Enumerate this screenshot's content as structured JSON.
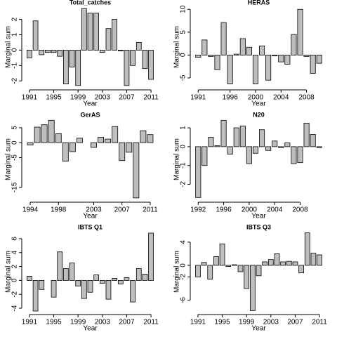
{
  "chart_data": [
    {
      "type": "bar",
      "title": "Total_catches",
      "xlabel": "Year",
      "ylabel": "Marginal sum",
      "color": "#bebebe",
      "x": [
        1991,
        1992,
        1993,
        1994,
        1995,
        1996,
        1997,
        1998,
        1999,
        2000,
        2001,
        2002,
        2003,
        2004,
        2005,
        2006,
        2007,
        2008,
        2009,
        2010,
        2011
      ],
      "values": [
        -0.5,
        1.9,
        -0.3,
        -0.15,
        -0.15,
        -0.4,
        -2.2,
        -1.1,
        -2.3,
        2.7,
        2.4,
        2.4,
        -0.15,
        1.4,
        2.0,
        -0.05,
        -2.3,
        -1.0,
        0.5,
        -1.2,
        -1.9
      ],
      "xlim": [
        1990.2,
        2011.8
      ],
      "xticks": [
        1991,
        1995,
        1999,
        2003,
        2007,
        2011
      ],
      "ylim": [
        -2.4,
        2.8
      ],
      "yticks": [
        -2,
        -1,
        0,
        1,
        2
      ]
    },
    {
      "type": "bar",
      "title": "HERAS",
      "xlabel": "Year",
      "ylabel": "Marginal sum",
      "color": "#bebebe",
      "x": [
        1991,
        1992,
        1993,
        1994,
        1995,
        1996,
        1997,
        1998,
        1999,
        2000,
        2001,
        2002,
        2003,
        2004,
        2005,
        2006,
        2007,
        2008,
        2009,
        2010
      ],
      "values": [
        -0.5,
        3.3,
        -0.3,
        -3.2,
        7.1,
        -6.3,
        0.2,
        3.6,
        1.7,
        -6.3,
        2.0,
        -5.5,
        -0.2,
        -1.5,
        -2.0,
        4.5,
        10.0,
        -0.3,
        -4.0,
        -1.8
      ],
      "xlim": [
        1990.2,
        2010.8
      ],
      "xticks": [
        1991,
        1996,
        2000,
        2004,
        2008
      ],
      "ylim": [
        -7,
        10.5
      ],
      "yticks": [
        -5,
        0,
        5,
        10
      ]
    },
    {
      "type": "bar",
      "title": "GerAS",
      "xlabel": "Year",
      "ylabel": "Marginal sum",
      "color": "#bebebe",
      "x": [
        1994,
        1995,
        1996,
        1997,
        1998,
        1999,
        2000,
        2001,
        2003,
        2004,
        2005,
        2006,
        2007,
        2008,
        2009,
        2010,
        2011
      ],
      "values": [
        -0.8,
        5.2,
        6.0,
        7.5,
        3.0,
        -6.2,
        -3.0,
        1.5,
        -1.6,
        1.8,
        1.2,
        5.4,
        -6.0,
        -3.2,
        -18.5,
        4.0,
        2.7
      ],
      "xlim": [
        1993.2,
        2011.8
      ],
      "xticks": [
        1994,
        1998,
        2003,
        2007,
        2011
      ],
      "ylim": [
        -19,
        7.8
      ],
      "yticks": [
        -15,
        -5,
        0,
        5
      ]
    },
    {
      "type": "bar",
      "title": "N20",
      "xlabel": "Year",
      "ylabel": "Marginal sum",
      "color": "#bebebe",
      "x": [
        1992,
        1993,
        1994,
        1995,
        1996,
        1997,
        1998,
        1999,
        2000,
        2001,
        2002,
        2003,
        2004,
        2005,
        2006,
        2007,
        2008,
        2009,
        2010,
        2011
      ],
      "values": [
        -2.7,
        -1.0,
        0.5,
        0.05,
        1.4,
        -0.4,
        1.0,
        1.1,
        -0.9,
        -0.35,
        0.9,
        -0.2,
        0.3,
        -0.05,
        0.2,
        -0.9,
        -0.85,
        1.25,
        0.65,
        -0.05
      ],
      "xlim": [
        1991.2,
        2011.8
      ],
      "xticks": [
        1992,
        1996,
        2000,
        2004,
        2008
      ],
      "ylim": [
        -2.8,
        1.45
      ],
      "yticks": [
        -2,
        -1,
        0,
        1
      ]
    },
    {
      "type": "bar",
      "title": "IBTS Q1",
      "xlabel": "Year",
      "ylabel": "Marginal sum",
      "color": "#bebebe",
      "x": [
        1991,
        1992,
        1993,
        1994,
        1995,
        1996,
        1997,
        1998,
        1999,
        2000,
        2001,
        2002,
        2003,
        2004,
        2005,
        2006,
        2007,
        2008,
        2009,
        2010,
        2011
      ],
      "values": [
        0.6,
        -4.4,
        -1.3,
        0,
        -2.4,
        4.1,
        1.7,
        2.5,
        -0.8,
        -2.6,
        -1.7,
        0.8,
        -0.4,
        -2.7,
        0.3,
        -0.5,
        0.4,
        -3.1,
        1.7,
        0.9,
        6.8
      ],
      "xlim": [
        1990.2,
        2011.8
      ],
      "xticks": [
        1991,
        1995,
        1999,
        2003,
        2007,
        2011
      ],
      "ylim": [
        -4.5,
        7
      ],
      "yticks": [
        -4,
        -2,
        0,
        2,
        4,
        6
      ]
    },
    {
      "type": "bar",
      "title": "IBTS Q3",
      "xlabel": "Year",
      "ylabel": "Marginal sum",
      "color": "#bebebe",
      "x": [
        1991,
        1992,
        1993,
        1994,
        1995,
        1996,
        1997,
        1998,
        1999,
        2000,
        2001,
        2002,
        2003,
        2004,
        2005,
        2006,
        2007,
        2008,
        2009,
        2010,
        2011
      ],
      "values": [
        -2.0,
        0.5,
        -2.4,
        1.5,
        3.7,
        -0.2,
        0.1,
        -1.1,
        -4.0,
        -7.8,
        -1.8,
        0.6,
        1.0,
        2.0,
        0.6,
        0.7,
        0.6,
        -1.3,
        5.6,
        2.1,
        1.8
      ],
      "xlim": [
        1990.2,
        2011.8
      ],
      "xticks": [
        1991,
        1995,
        1999,
        2003,
        2007,
        2011
      ],
      "ylim": [
        -8,
        5.8
      ],
      "yticks": [
        -6,
        -2,
        0,
        4
      ]
    }
  ]
}
